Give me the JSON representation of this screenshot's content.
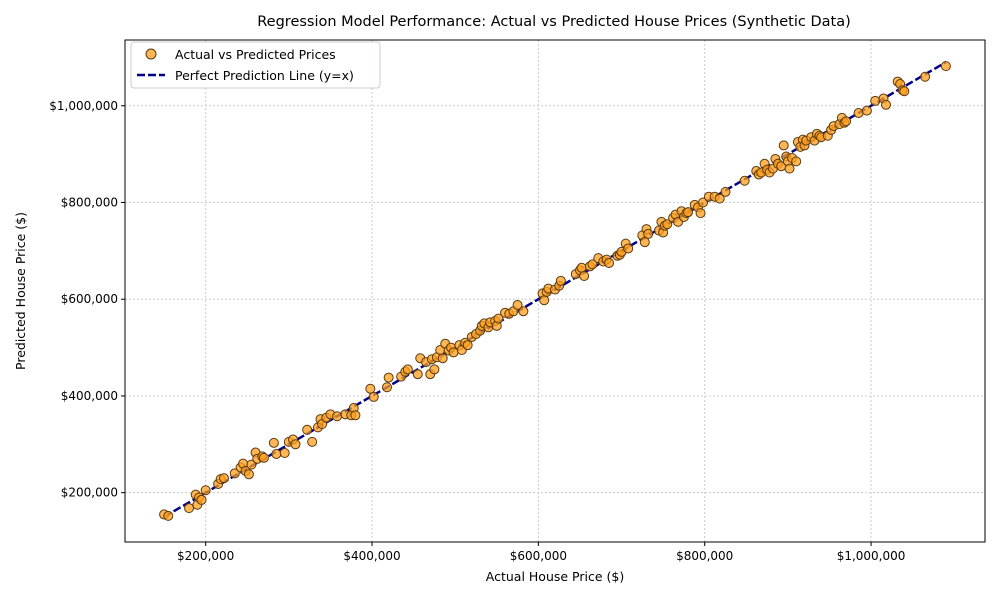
{
  "chart_data": {
    "type": "scatter",
    "title": "Regression Model Performance: Actual vs Predicted House Prices (Synthetic Data)",
    "xlabel": "Actual House Price ($)",
    "ylabel": "Predicted House Price ($)",
    "xlim": [
      103000,
      1137000
    ],
    "ylim": [
      98000,
      1136000
    ],
    "grid": true,
    "legend_position": "top-left",
    "colors": {
      "points": "#ff9f1c",
      "point_edge": "#5a3a10",
      "line": "#00008b",
      "grid": "#cccccc"
    },
    "x_ticks": [
      {
        "value": 200000,
        "label": "$200,000"
      },
      {
        "value": 400000,
        "label": "$400,000"
      },
      {
        "value": 600000,
        "label": "$600,000"
      },
      {
        "value": 800000,
        "label": "$800,000"
      },
      {
        "value": 1000000,
        "label": "$1,000,000"
      }
    ],
    "y_ticks": [
      {
        "value": 200000,
        "label": "$200,000"
      },
      {
        "value": 400000,
        "label": "$400,000"
      },
      {
        "value": 600000,
        "label": "$600,000"
      },
      {
        "value": 800000,
        "label": "$800,000"
      },
      {
        "value": 1000000,
        "label": "$1,000,000"
      }
    ],
    "legend": {
      "scatter_label": "Actual vs Predicted Prices",
      "line_label": "Perfect Prediction Line (y=x)"
    },
    "line": {
      "name": "Perfect Prediction Line (y=x)",
      "x": [
        150000,
        1090000
      ],
      "y": [
        150000,
        1090000
      ]
    },
    "series": [
      {
        "name": "Actual vs Predicted Prices",
        "points": [
          [
            150000,
            155000
          ],
          [
            155000,
            152000
          ],
          [
            180000,
            168000
          ],
          [
            188000,
            196000
          ],
          [
            190000,
            175000
          ],
          [
            192000,
            190000
          ],
          [
            195000,
            185000
          ],
          [
            200000,
            205000
          ],
          [
            215000,
            218000
          ],
          [
            218000,
            228000
          ],
          [
            222000,
            230000
          ],
          [
            235000,
            240000
          ],
          [
            242000,
            252000
          ],
          [
            245000,
            260000
          ],
          [
            248000,
            245000
          ],
          [
            252000,
            238000
          ],
          [
            255000,
            258000
          ],
          [
            260000,
            283000
          ],
          [
            262000,
            270000
          ],
          [
            268000,
            275000
          ],
          [
            270000,
            272000
          ],
          [
            282000,
            303000
          ],
          [
            285000,
            280000
          ],
          [
            295000,
            282000
          ],
          [
            300000,
            305000
          ],
          [
            305000,
            310000
          ],
          [
            308000,
            300000
          ],
          [
            322000,
            330000
          ],
          [
            328000,
            305000
          ],
          [
            335000,
            335000
          ],
          [
            338000,
            352000
          ],
          [
            340000,
            342000
          ],
          [
            345000,
            355000
          ],
          [
            350000,
            362000
          ],
          [
            358000,
            358000
          ],
          [
            368000,
            362000
          ],
          [
            375000,
            360000
          ],
          [
            378000,
            375000
          ],
          [
            380000,
            360000
          ],
          [
            398000,
            415000
          ],
          [
            402000,
            398000
          ],
          [
            418000,
            418000
          ],
          [
            420000,
            438000
          ],
          [
            435000,
            440000
          ],
          [
            440000,
            450000
          ],
          [
            443000,
            455000
          ],
          [
            455000,
            445000
          ],
          [
            458000,
            478000
          ],
          [
            465000,
            470000
          ],
          [
            470000,
            445000
          ],
          [
            472000,
            476000
          ],
          [
            475000,
            455000
          ],
          [
            478000,
            480000
          ],
          [
            482000,
            495000
          ],
          [
            485000,
            478000
          ],
          [
            488000,
            508000
          ],
          [
            492000,
            494000
          ],
          [
            495000,
            500000
          ],
          [
            498000,
            490000
          ],
          [
            505000,
            505000
          ],
          [
            508000,
            495000
          ],
          [
            512000,
            510000
          ],
          [
            515000,
            505000
          ],
          [
            520000,
            522000
          ],
          [
            525000,
            528000
          ],
          [
            530000,
            535000
          ],
          [
            532000,
            545000
          ],
          [
            535000,
            550000
          ],
          [
            540000,
            542000
          ],
          [
            542000,
            552000
          ],
          [
            548000,
            555000
          ],
          [
            550000,
            545000
          ],
          [
            552000,
            560000
          ],
          [
            560000,
            572000
          ],
          [
            565000,
            570000
          ],
          [
            570000,
            575000
          ],
          [
            575000,
            588000
          ],
          [
            582000,
            575000
          ],
          [
            605000,
            612000
          ],
          [
            607000,
            598000
          ],
          [
            610000,
            615000
          ],
          [
            612000,
            622000
          ],
          [
            620000,
            620000
          ],
          [
            625000,
            628000
          ],
          [
            627000,
            638000
          ],
          [
            645000,
            652000
          ],
          [
            650000,
            660000
          ],
          [
            652000,
            665000
          ],
          [
            655000,
            648000
          ],
          [
            662000,
            668000
          ],
          [
            665000,
            672000
          ],
          [
            672000,
            685000
          ],
          [
            678000,
            678000
          ],
          [
            682000,
            682000
          ],
          [
            685000,
            675000
          ],
          [
            695000,
            690000
          ],
          [
            698000,
            692000
          ],
          [
            700000,
            698000
          ],
          [
            705000,
            715000
          ],
          [
            708000,
            705000
          ],
          [
            725000,
            732000
          ],
          [
            728000,
            718000
          ],
          [
            730000,
            745000
          ],
          [
            732000,
            735000
          ],
          [
            745000,
            742000
          ],
          [
            748000,
            760000
          ],
          [
            750000,
            738000
          ],
          [
            752000,
            752000
          ],
          [
            755000,
            755000
          ],
          [
            762000,
            768000
          ],
          [
            765000,
            775000
          ],
          [
            768000,
            760000
          ],
          [
            772000,
            782000
          ],
          [
            775000,
            770000
          ],
          [
            778000,
            778000
          ],
          [
            780000,
            780000
          ],
          [
            788000,
            795000
          ],
          [
            792000,
            790000
          ],
          [
            795000,
            778000
          ],
          [
            798000,
            800000
          ],
          [
            805000,
            812000
          ],
          [
            812000,
            812000
          ],
          [
            818000,
            808000
          ],
          [
            825000,
            822000
          ],
          [
            848000,
            845000
          ],
          [
            862000,
            865000
          ],
          [
            865000,
            858000
          ],
          [
            868000,
            862000
          ],
          [
            872000,
            880000
          ],
          [
            875000,
            868000
          ],
          [
            878000,
            862000
          ],
          [
            882000,
            870000
          ],
          [
            885000,
            890000
          ],
          [
            888000,
            880000
          ],
          [
            892000,
            875000
          ],
          [
            895000,
            918000
          ],
          [
            898000,
            895000
          ],
          [
            900000,
            885000
          ],
          [
            902000,
            870000
          ],
          [
            905000,
            892000
          ],
          [
            910000,
            885000
          ],
          [
            912000,
            925000
          ],
          [
            915000,
            915000
          ],
          [
            918000,
            930000
          ],
          [
            920000,
            918000
          ],
          [
            922000,
            928000
          ],
          [
            928000,
            935000
          ],
          [
            932000,
            928000
          ],
          [
            935000,
            942000
          ],
          [
            938000,
            938000
          ],
          [
            940000,
            935000
          ],
          [
            948000,
            938000
          ],
          [
            952000,
            950000
          ],
          [
            955000,
            958000
          ],
          [
            962000,
            962000
          ],
          [
            965000,
            975000
          ],
          [
            968000,
            965000
          ],
          [
            970000,
            968000
          ],
          [
            985000,
            985000
          ],
          [
            995000,
            990000
          ],
          [
            1005000,
            1010000
          ],
          [
            1015000,
            1015000
          ],
          [
            1018000,
            1002000
          ],
          [
            1032000,
            1050000
          ],
          [
            1035000,
            1045000
          ],
          [
            1038000,
            1032000
          ],
          [
            1040000,
            1030000
          ],
          [
            1065000,
            1060000
          ],
          [
            1090000,
            1082000
          ]
        ]
      }
    ]
  }
}
